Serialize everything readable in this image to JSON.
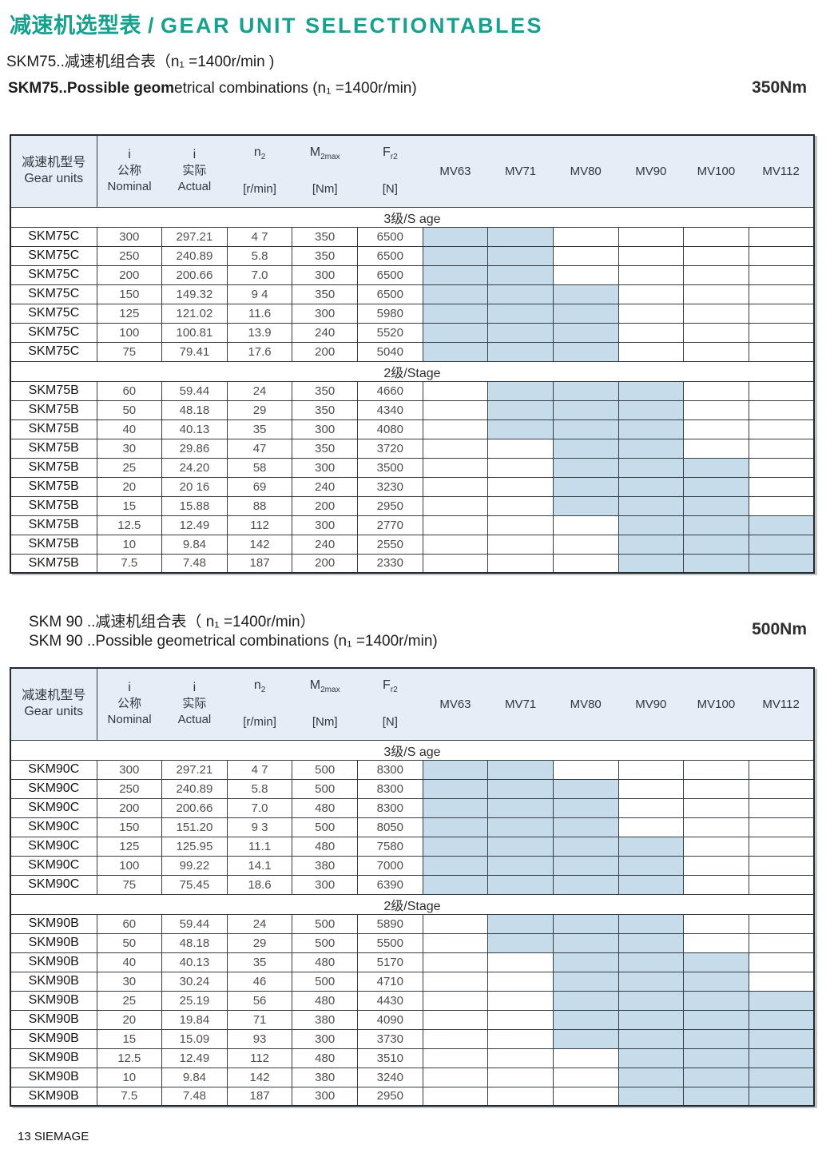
{
  "page": {
    "title_zh": "减速机选型表",
    "title_sep": " / ",
    "title_en": "GEAR UNIT SELECTIONTABLES",
    "footer": "13 SIEMAGE"
  },
  "table_header": {
    "gear_zh": "减速机型号",
    "gear_en": "Gear units",
    "measure_cols": [
      {
        "name": "i-nominal",
        "main": "i",
        "sub": "",
        "zh": "公称",
        "unit": "Nominal"
      },
      {
        "name": "i-actual",
        "main": "i",
        "sub": "",
        "zh": "实际",
        "unit": "Actual"
      },
      {
        "name": "n2",
        "main": "n",
        "sub": "2",
        "zh": "",
        "unit": "[r/min]"
      },
      {
        "name": "m2max",
        "main": "M",
        "sub": "2max",
        "zh": "",
        "unit": "[Nm]"
      },
      {
        "name": "fr2",
        "main": "F",
        "sub": "r2",
        "zh": "",
        "unit": "[N]"
      }
    ],
    "mv_cols": [
      "MV63",
      "MV71",
      "MV80",
      "MV90",
      "MV100",
      "MV112"
    ]
  },
  "tables": [
    {
      "id": "skm75",
      "heading_zh": "SKM75..减速机组合表（n₁ =1400r/min )",
      "heading_en_bold": "SKM75..Possible geom",
      "heading_en_rest": "etrical combinations  (n₁ =1400r/min)",
      "torque": "350Nm",
      "sections": [
        {
          "label": "3级/S age",
          "rows": [
            {
              "model": "SKM75C",
              "values": [
                "300",
                "297.21",
                "4 7",
                "350",
                "6500"
              ],
              "mv": [
                1,
                1,
                0,
                0,
                0,
                0
              ]
            },
            {
              "model": "SKM75C",
              "values": [
                "250",
                "240.89",
                "5.8",
                "350",
                "6500"
              ],
              "mv": [
                1,
                1,
                0,
                0,
                0,
                0
              ]
            },
            {
              "model": "SKM75C",
              "values": [
                "200",
                "200.66",
                "7.0",
                "300",
                "6500"
              ],
              "mv": [
                1,
                1,
                0,
                0,
                0,
                0
              ]
            },
            {
              "model": "SKM75C",
              "values": [
                "150",
                "149.32",
                "9 4",
                "350",
                "6500"
              ],
              "mv": [
                1,
                1,
                1,
                0,
                0,
                0
              ]
            },
            {
              "model": "SKM75C",
              "values": [
                "125",
                "121.02",
                "11.6",
                "300",
                "5980"
              ],
              "mv": [
                1,
                1,
                1,
                0,
                0,
                0
              ]
            },
            {
              "model": "SKM75C",
              "values": [
                "100",
                "100.81",
                "13.9",
                "240",
                "5520"
              ],
              "mv": [
                1,
                1,
                1,
                0,
                0,
                0
              ]
            },
            {
              "model": "SKM75C",
              "values": [
                "75",
                "79.41",
                "17.6",
                "200",
                "5040"
              ],
              "mv": [
                1,
                1,
                1,
                0,
                0,
                0
              ]
            }
          ]
        },
        {
          "label": "2级/Stage",
          "rows": [
            {
              "model": "SKM75B",
              "values": [
                "60",
                "59.44",
                "24",
                "350",
                "4660"
              ],
              "mv": [
                0,
                1,
                1,
                1,
                0,
                0
              ]
            },
            {
              "model": "SKM75B",
              "values": [
                "50",
                "48.18",
                "29",
                "350",
                "4340"
              ],
              "mv": [
                0,
                1,
                1,
                1,
                0,
                0
              ]
            },
            {
              "model": "SKM75B",
              "values": [
                "40",
                "40.13",
                "35",
                "300",
                "4080"
              ],
              "mv": [
                0,
                1,
                1,
                1,
                0,
                0
              ]
            },
            {
              "model": "SKM75B",
              "values": [
                "30",
                "29.86",
                "47",
                "350",
                "3720"
              ],
              "mv": [
                0,
                0,
                1,
                1,
                0,
                0
              ]
            },
            {
              "model": "SKM75B",
              "values": [
                "25",
                "24.20",
                "58",
                "300",
                "3500"
              ],
              "mv": [
                0,
                0,
                1,
                1,
                1,
                0
              ]
            },
            {
              "model": "SKM75B",
              "values": [
                "20",
                "20 16",
                "69",
                "240",
                "3230"
              ],
              "mv": [
                0,
                0,
                1,
                1,
                1,
                0
              ]
            },
            {
              "model": "SKM75B",
              "values": [
                "15",
                "15.88",
                "88",
                "200",
                "2950"
              ],
              "mv": [
                0,
                0,
                1,
                1,
                1,
                0
              ]
            },
            {
              "model": "SKM75B",
              "values": [
                "12.5",
                "12.49",
                "112",
                "300",
                "2770"
              ],
              "mv": [
                0,
                0,
                0,
                1,
                1,
                1
              ]
            },
            {
              "model": "SKM75B",
              "values": [
                "10",
                "9.84",
                "142",
                "240",
                "2550"
              ],
              "mv": [
                0,
                0,
                0,
                1,
                1,
                1
              ]
            },
            {
              "model": "SKM75B",
              "values": [
                "7.5",
                "7.48",
                "187",
                "200",
                "2330"
              ],
              "mv": [
                0,
                0,
                0,
                1,
                1,
                1
              ]
            }
          ]
        }
      ]
    },
    {
      "id": "skm90",
      "heading_zh": "SKM 90 ..减速机组合表（ n₁ =1400r/min）",
      "heading_en_bold": "",
      "heading_en_rest": "SKM 90 ..Possible geometrical combinations (n₁ =1400r/min)",
      "torque": "500Nm",
      "sections": [
        {
          "label": "3级/S age",
          "rows": [
            {
              "model": "SKM90C",
              "values": [
                "300",
                "297.21",
                "4 7",
                "500",
                "8300"
              ],
              "mv": [
                1,
                1,
                0,
                0,
                0,
                0
              ]
            },
            {
              "model": "SKM90C",
              "values": [
                "250",
                "240.89",
                "5.8",
                "500",
                "8300"
              ],
              "mv": [
                1,
                1,
                1,
                0,
                0,
                0
              ]
            },
            {
              "model": "SKM90C",
              "values": [
                "200",
                "200.66",
                "7.0",
                "480",
                "8300"
              ],
              "mv": [
                1,
                1,
                1,
                0,
                0,
                0
              ]
            },
            {
              "model": "SKM90C",
              "values": [
                "150",
                "151.20",
                "9 3",
                "500",
                "8050"
              ],
              "mv": [
                1,
                1,
                1,
                0,
                0,
                0
              ]
            },
            {
              "model": "SKM90C",
              "values": [
                "125",
                "125.95",
                "11.1",
                "480",
                "7580"
              ],
              "mv": [
                1,
                1,
                1,
                1,
                0,
                0
              ]
            },
            {
              "model": "SKM90C",
              "values": [
                "100",
                "99.22",
                "14.1",
                "380",
                "7000"
              ],
              "mv": [
                1,
                1,
                1,
                1,
                0,
                0
              ]
            },
            {
              "model": "SKM90C",
              "values": [
                "75",
                "75.45",
                "18.6",
                "300",
                "6390"
              ],
              "mv": [
                1,
                1,
                1,
                1,
                0,
                0
              ]
            }
          ]
        },
        {
          "label": "2级/Stage",
          "rows": [
            {
              "model": "SKM90B",
              "values": [
                "60",
                "59.44",
                "24",
                "500",
                "5890"
              ],
              "mv": [
                0,
                1,
                1,
                1,
                0,
                0
              ]
            },
            {
              "model": "SKM90B",
              "values": [
                "50",
                "48.18",
                "29",
                "500",
                "5500"
              ],
              "mv": [
                0,
                1,
                1,
                1,
                0,
                0
              ]
            },
            {
              "model": "SKM90B",
              "values": [
                "40",
                "40.13",
                "35",
                "480",
                "5170"
              ],
              "mv": [
                0,
                0,
                1,
                1,
                1,
                0
              ]
            },
            {
              "model": "SKM90B",
              "values": [
                "30",
                "30.24",
                "46",
                "500",
                "4710"
              ],
              "mv": [
                0,
                0,
                1,
                1,
                1,
                0
              ]
            },
            {
              "model": "SKM90B",
              "values": [
                "25",
                "25.19",
                "56",
                "480",
                "4430"
              ],
              "mv": [
                0,
                0,
                1,
                1,
                1,
                1
              ]
            },
            {
              "model": "SKM90B",
              "values": [
                "20",
                "19.84",
                "71",
                "380",
                "4090"
              ],
              "mv": [
                0,
                0,
                1,
                1,
                1,
                1
              ]
            },
            {
              "model": "SKM90B",
              "values": [
                "15",
                "15.09",
                "93",
                "300",
                "3730"
              ],
              "mv": [
                0,
                0,
                1,
                1,
                1,
                1
              ]
            },
            {
              "model": "SKM90B",
              "values": [
                "12.5",
                "12.49",
                "112",
                "480",
                "3510"
              ],
              "mv": [
                0,
                0,
                0,
                1,
                1,
                1
              ]
            },
            {
              "model": "SKM90B",
              "values": [
                "10",
                "9.84",
                "142",
                "380",
                "3240"
              ],
              "mv": [
                0,
                0,
                0,
                1,
                1,
                1
              ]
            },
            {
              "model": "SKM90B",
              "values": [
                "7.5",
                "7.48",
                "187",
                "300",
                "2950"
              ],
              "mv": [
                0,
                0,
                0,
                1,
                1,
                1
              ]
            }
          ]
        }
      ]
    }
  ]
}
